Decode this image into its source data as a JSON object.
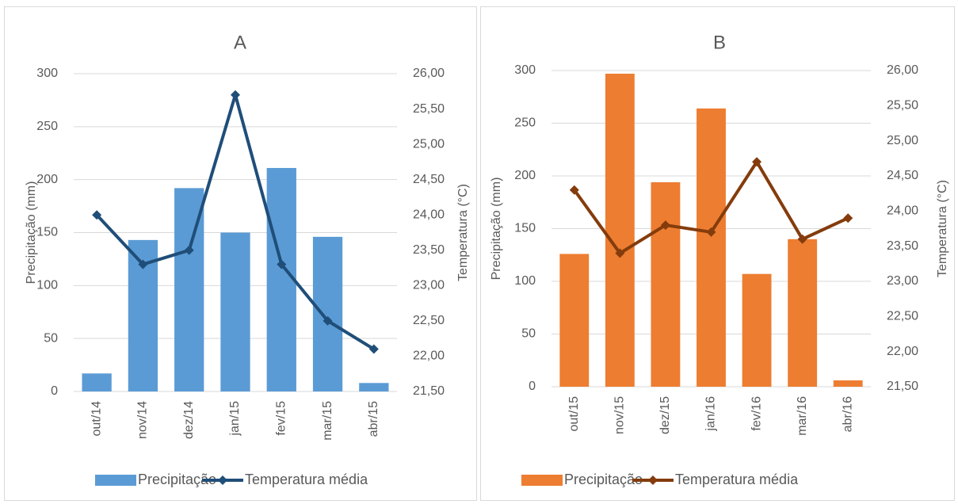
{
  "chart_data": [
    {
      "type": "bar-line",
      "title": "A",
      "y_label": "Precipitação (mm)",
      "y2_label": "Temperatura (°C)",
      "categories": [
        "out/14",
        "nov/14",
        "dez/14",
        "jan/15",
        "fev/15",
        "mar/15",
        "abr/15"
      ],
      "series": [
        {
          "name": "Precipitação",
          "type": "bar",
          "color": "#5b9bd5",
          "values": [
            17,
            143,
            192,
            150,
            211,
            146,
            8
          ]
        },
        {
          "name": "Temperatura média",
          "type": "line",
          "axis": "y2",
          "color": "#1f4e79",
          "values": [
            24.0,
            23.3,
            23.5,
            25.7,
            23.3,
            22.5,
            22.1
          ]
        }
      ],
      "ylim": [
        0,
        300
      ],
      "yticks": [
        0,
        50,
        100,
        150,
        200,
        250,
        300
      ],
      "y2lim": [
        21.5,
        26.0
      ],
      "y2ticks": [
        {
          "value": 21.5,
          "label": "21,50"
        },
        {
          "value": 22.0,
          "label": "22,00"
        },
        {
          "value": 22.5,
          "label": "22,50"
        },
        {
          "value": 23.0,
          "label": "23,00"
        },
        {
          "value": 23.5,
          "label": "23,50"
        },
        {
          "value": 24.0,
          "label": "24,00"
        },
        {
          "value": 24.5,
          "label": "24,50"
        },
        {
          "value": 25.0,
          "label": "25,00"
        },
        {
          "value": 25.5,
          "label": "25,50"
        },
        {
          "value": 26.0,
          "label": "26,00"
        }
      ],
      "grid": true,
      "legend": "bottom"
    },
    {
      "type": "bar-line",
      "title": "B",
      "y_label": "Precipitação (mm)",
      "y2_label": "Temperatura (°C)",
      "categories": [
        "out/15",
        "nov/15",
        "dez/15",
        "jan/16",
        "fev/16",
        "mar/16",
        "abr/16"
      ],
      "series": [
        {
          "name": "Precipitação",
          "type": "bar",
          "color": "#ed7d31",
          "values": [
            126,
            297,
            194,
            264,
            107,
            140,
            6
          ]
        },
        {
          "name": "Temperatura média",
          "type": "line",
          "axis": "y2",
          "color": "#843c0c",
          "values": [
            24.3,
            23.4,
            23.8,
            23.7,
            24.7,
            23.6,
            23.9
          ]
        }
      ],
      "ylim": [
        0,
        300
      ],
      "yticks": [
        0,
        50,
        100,
        150,
        200,
        250,
        300
      ],
      "y2lim": [
        21.5,
        26.0
      ],
      "y2ticks": [
        {
          "value": 21.5,
          "label": "21,50"
        },
        {
          "value": 22.0,
          "label": "22,00"
        },
        {
          "value": 22.5,
          "label": "22,50"
        },
        {
          "value": 23.0,
          "label": "23,00"
        },
        {
          "value": 23.5,
          "label": "23,50"
        },
        {
          "value": 24.0,
          "label": "24,00"
        },
        {
          "value": 24.5,
          "label": "24,50"
        },
        {
          "value": 25.0,
          "label": "25,00"
        },
        {
          "value": 25.5,
          "label": "25,50"
        },
        {
          "value": 26.0,
          "label": "26,00"
        }
      ],
      "grid": true,
      "legend": "bottom"
    }
  ]
}
